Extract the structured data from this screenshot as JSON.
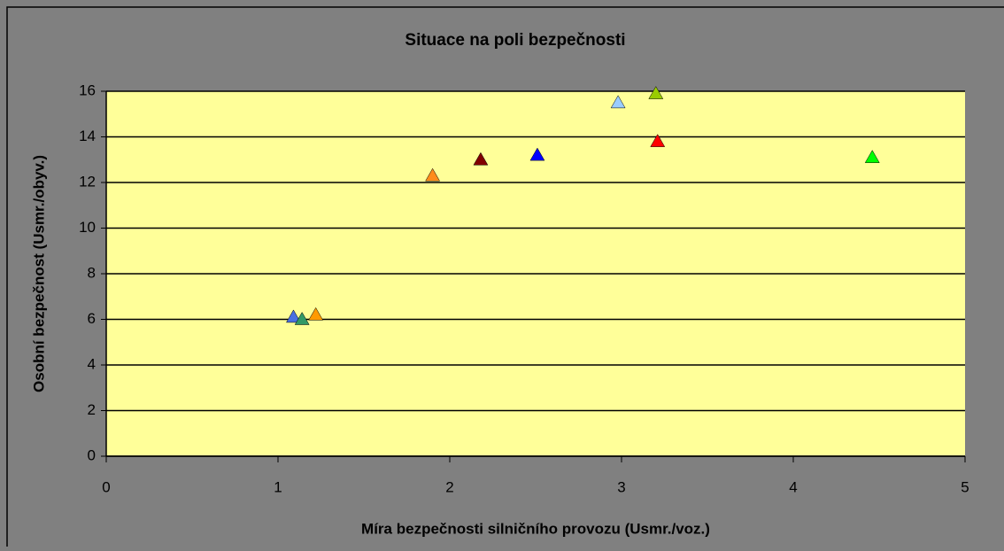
{
  "chart_data": {
    "type": "scatter",
    "title": "Situace na poli bezpečnosti",
    "x_label": "Míra bezpečnosti silničního provozu (Usmr./voz.)",
    "y_label": "Osobní bezpečnost (Usmr./obyv.)",
    "xlim": [
      0,
      5
    ],
    "xticks": [
      0,
      1,
      2,
      3,
      4,
      5
    ],
    "ylim": [
      0,
      16
    ],
    "yticks": [
      0,
      2,
      4,
      6,
      8,
      10,
      12,
      14,
      16
    ],
    "grid": true,
    "series": [
      {
        "color": "#4a6fe0",
        "x": [
          1.09
        ],
        "values": [
          6.1
        ]
      },
      {
        "color": "#339966",
        "x": [
          1.14
        ],
        "values": [
          6.0
        ]
      },
      {
        "color": "#ff9900",
        "x": [
          1.22
        ],
        "values": [
          6.2
        ]
      },
      {
        "color": "#ff8c1a",
        "x": [
          1.9
        ],
        "values": [
          12.3
        ]
      },
      {
        "color": "#800000",
        "x": [
          2.18
        ],
        "values": [
          13.0
        ]
      },
      {
        "color": "#0000ff",
        "x": [
          2.51
        ],
        "values": [
          13.2
        ]
      },
      {
        "color": "#99ccff",
        "x": [
          2.98
        ],
        "values": [
          15.5
        ]
      },
      {
        "color": "#99cc00",
        "x": [
          3.2
        ],
        "values": [
          15.9
        ]
      },
      {
        "color": "#ff0000",
        "x": [
          3.21
        ],
        "values": [
          13.8
        ]
      },
      {
        "color": "#00ff00",
        "x": [
          4.46
        ],
        "values": [
          13.1
        ]
      }
    ]
  }
}
